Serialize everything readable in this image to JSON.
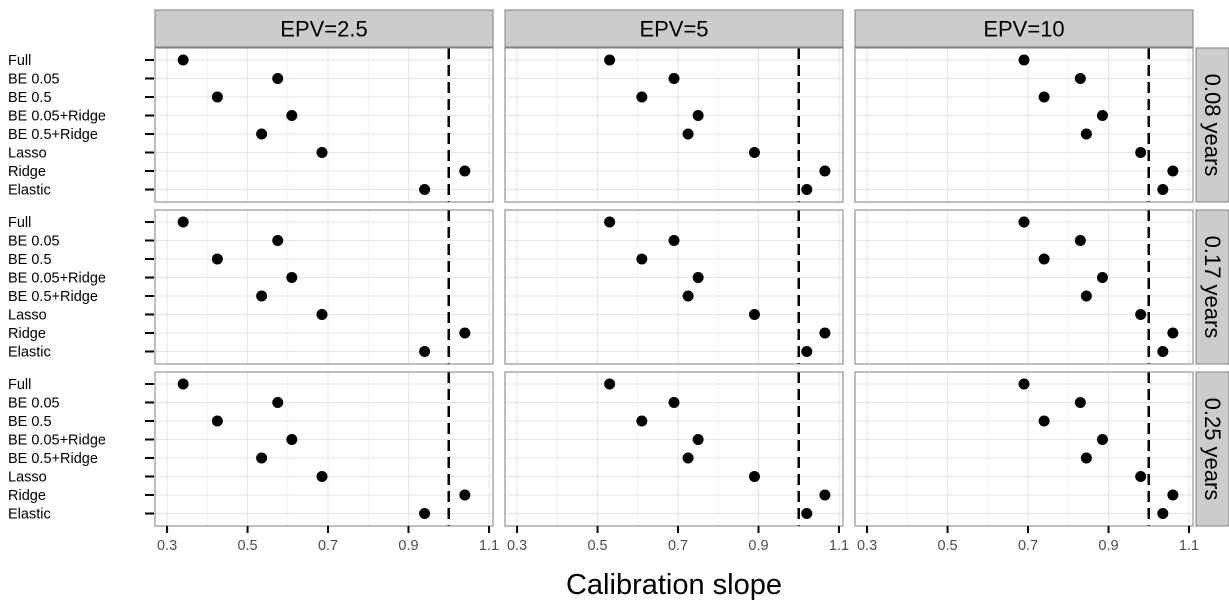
{
  "chart_data": {
    "type": "scatter",
    "xlabel": "Calibration slope",
    "ylabel": "",
    "xlim": [
      0.27,
      1.11
    ],
    "xticks": [
      0.3,
      0.5,
      0.7,
      0.9,
      1.1
    ],
    "xtick_labels": [
      "0.3",
      "0.5",
      "0.7",
      "0.9",
      "1.1"
    ],
    "reference_line": 1.0,
    "grid": true,
    "methods": [
      "Full",
      "BE 0.05",
      "BE 0.5",
      "BE 0.05+Ridge",
      "BE 0.5+Ridge",
      "Lasso",
      "Ridge",
      "Elastic"
    ],
    "columns": [
      "EPV=2.5",
      "EPV=5",
      "EPV=10"
    ],
    "rows": [
      "0.08 years",
      "0.17 years",
      "0.25 years"
    ],
    "values_by_epv": {
      "EPV=2.5": [
        0.34,
        0.575,
        0.425,
        0.61,
        0.535,
        0.685,
        1.04,
        0.94
      ],
      "EPV=5": [
        0.53,
        0.69,
        0.61,
        0.75,
        0.725,
        0.89,
        1.065,
        1.02
      ],
      "EPV=10": [
        0.69,
        0.83,
        0.74,
        0.885,
        0.845,
        0.98,
        1.06,
        1.035
      ]
    },
    "colors": {
      "panel_bg": "#ffffff",
      "panel_border": "#7f7f7f",
      "strip_bg": "#cccccc",
      "grid_major": "#e5e5e5",
      "grid_minor": "#f2f2f2",
      "point": "#000000",
      "refline": "#000000",
      "text": "#000000",
      "tick_label": "#4d4d4d"
    }
  }
}
